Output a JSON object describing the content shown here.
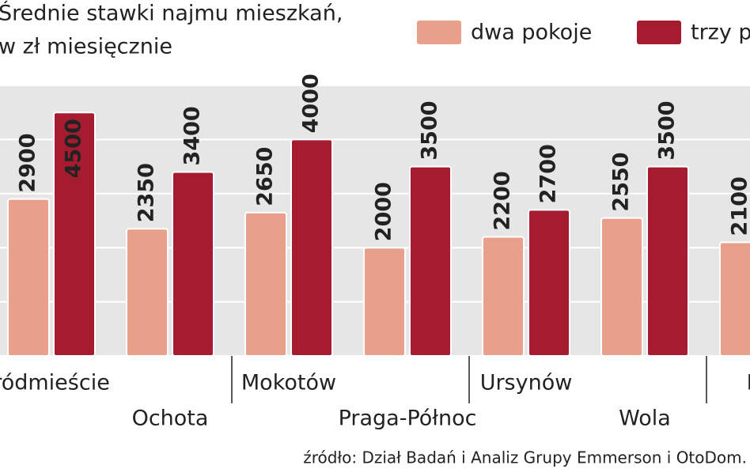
{
  "chart_data": {
    "type": "bar",
    "title": "Średnie stawki najmu mieszkań,",
    "subtitle": "w zł miesięcznie",
    "categories": [
      "ródmieście",
      "Ochota",
      "Mokotów",
      "Praga-Północ",
      "Ursynów",
      "Wola",
      "Bie"
    ],
    "series": [
      {
        "name": "dwa pokoje",
        "color": "#e9a08b",
        "values": [
          2900,
          2350,
          2650,
          2000,
          2200,
          2550,
          2100
        ]
      },
      {
        "name": "trzy p",
        "color": "#a51c30",
        "values": [
          4500,
          3400,
          4000,
          3500,
          2700,
          3500,
          null
        ]
      }
    ],
    "ylim": [
      0,
      5000
    ],
    "yticks": [
      0,
      1000,
      2000,
      3000,
      4000,
      5000
    ],
    "grid": true,
    "source": "źródło: Dział Badań i Analiz Grupy Emmerson i OtoDom."
  }
}
